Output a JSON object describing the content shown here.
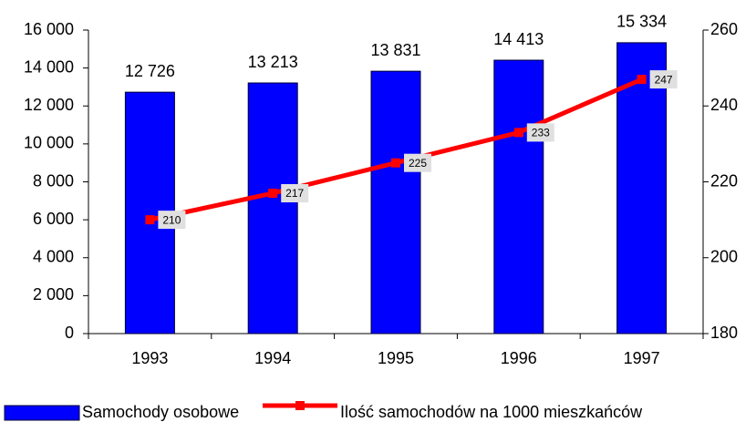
{
  "chart_data": {
    "type": "bar",
    "categories": [
      "1993",
      "1994",
      "1995",
      "1996",
      "1997"
    ],
    "series": [
      {
        "name": "Samochody osobowe",
        "type": "bar",
        "color": "#0000ff",
        "values": [
          12726,
          13213,
          13831,
          14413,
          15334
        ],
        "value_labels": [
          "12 726",
          "13 213",
          "13 831",
          "14 413",
          "15 334"
        ]
      },
      {
        "name": "Ilość samochodów na 1000 mieszkańców",
        "type": "line",
        "axis": "y2",
        "color": "#ff0000",
        "values": [
          210,
          217,
          225,
          233,
          247
        ]
      }
    ],
    "ylim": [
      0,
      16000
    ],
    "yticks": [
      0,
      {
        "value": 2000,
        "label": "2 000"
      },
      {
        "value": 4000,
        "label": "4 000"
      },
      {
        "value": 6000,
        "label": "6 000"
      },
      {
        "value": 8000,
        "label": "8 000"
      },
      {
        "value": 10000,
        "label": "10 000"
      },
      {
        "value": 12000,
        "label": "12 000"
      },
      {
        "value": 14000,
        "label": "14 000"
      },
      {
        "value": 16000,
        "label": "16 000"
      }
    ],
    "y2lim": [
      180,
      260
    ],
    "y2ticks": [
      180,
      200,
      220,
      240,
      260
    ],
    "legend": "bottom"
  }
}
